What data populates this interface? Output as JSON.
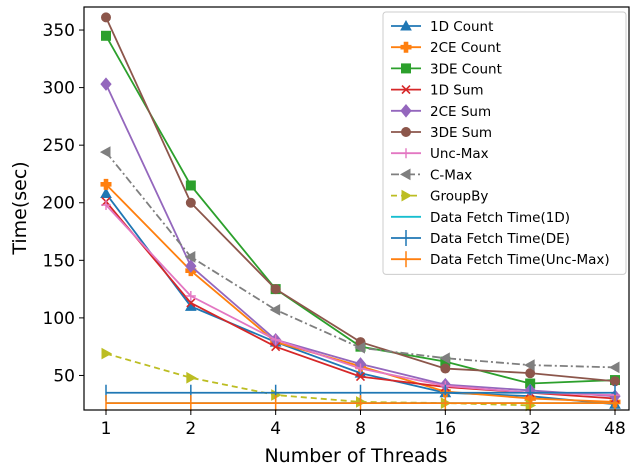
{
  "chart_data": {
    "type": "line",
    "title": "",
    "xlabel": "Number of Threads",
    "ylabel": "Time(sec)",
    "categories": [
      "1",
      "2",
      "4",
      "8",
      "16",
      "32",
      "48"
    ],
    "ylim": [
      20,
      370
    ],
    "yticks": [
      50,
      100,
      150,
      200,
      250,
      300,
      350
    ],
    "grid": false,
    "legend_position": "top-right",
    "series": [
      {
        "name": "1D Count",
        "color": "#1f77b4",
        "marker": "triangle-up",
        "dash": "solid",
        "values": [
          208,
          110,
          79,
          52,
          35,
          32,
          25
        ]
      },
      {
        "name": "2CE Count",
        "color": "#ff7f0e",
        "marker": "plus-filled",
        "dash": "solid",
        "values": [
          216,
          141,
          79,
          58,
          36,
          30,
          27
        ]
      },
      {
        "name": "3DE Count",
        "color": "#2ca02c",
        "marker": "square",
        "dash": "solid",
        "values": [
          345,
          215,
          125,
          75,
          62,
          43,
          46
        ]
      },
      {
        "name": "1D Sum",
        "color": "#d62728",
        "marker": "x",
        "dash": "solid",
        "values": [
          201,
          113,
          75,
          49,
          40,
          35,
          30
        ]
      },
      {
        "name": "2CE Sum",
        "color": "#9467bd",
        "marker": "diamond",
        "dash": "solid",
        "values": [
          303,
          145,
          81,
          60,
          42,
          37,
          32
        ]
      },
      {
        "name": "3DE Sum",
        "color": "#8c564b",
        "marker": "circle",
        "dash": "solid",
        "values": [
          361,
          200,
          125,
          79,
          56,
          52,
          45
        ]
      },
      {
        "name": "Unc-Max",
        "color": "#e377c2",
        "marker": "plus",
        "dash": "solid",
        "values": [
          198,
          119,
          81,
          56,
          41,
          35,
          33
        ]
      },
      {
        "name": "C-Max",
        "color": "#7f7f7f",
        "marker": "triangle-left",
        "dash": "dashdot",
        "values": [
          244,
          153,
          107,
          74,
          65,
          59,
          57
        ]
      },
      {
        "name": "GroupBy",
        "color": "#bcbd22",
        "marker": "triangle-right",
        "dash": "dashed",
        "values": [
          69,
          48,
          33,
          27,
          26,
          24,
          null
        ]
      },
      {
        "name": "Data Fetch Time(1D)",
        "color": "#17becf",
        "marker": "none",
        "dash": "solid",
        "values": [
          26,
          26,
          26,
          26,
          26,
          26,
          26
        ]
      },
      {
        "name": "Data Fetch Time(DE)",
        "color": "#1f77b4",
        "marker": "vline",
        "dash": "solid",
        "values": [
          35,
          35,
          35,
          35,
          35,
          35,
          35
        ]
      },
      {
        "name": "Data Fetch Time(Unc-Max)",
        "color": "#ff7f0e",
        "marker": "vline",
        "dash": "solid",
        "values": [
          26,
          26,
          26,
          26,
          26,
          26,
          26
        ]
      }
    ]
  }
}
